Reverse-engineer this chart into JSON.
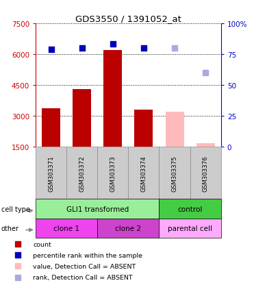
{
  "title": "GDS3550 / 1391052_at",
  "samples": [
    "GSM303371",
    "GSM303372",
    "GSM303373",
    "GSM303374",
    "GSM303375",
    "GSM303376"
  ],
  "counts": [
    3350,
    4300,
    6200,
    3300,
    null,
    null
  ],
  "counts_absent": [
    null,
    null,
    null,
    null,
    3200,
    1650
  ],
  "percentile_ranks": [
    79,
    80,
    83,
    80,
    null,
    null
  ],
  "percentile_ranks_absent": [
    null,
    null,
    null,
    null,
    80,
    60
  ],
  "ylim_left": [
    1500,
    7500
  ],
  "ylim_right": [
    0,
    100
  ],
  "yticks_left": [
    1500,
    3000,
    4500,
    6000,
    7500
  ],
  "yticks_right": [
    0,
    25,
    50,
    75,
    100
  ],
  "ytick_labels_right": [
    "0",
    "25",
    "50",
    "75",
    "100%"
  ],
  "left_axis_color": "#cc0000",
  "right_axis_color": "#0000cc",
  "bar_color_present": "#bb0000",
  "bar_color_absent": "#ffbbbb",
  "dot_color_present": "#0000bb",
  "dot_color_absent": "#aaaadd",
  "cell_type_groups": [
    {
      "label": "GLI1 transformed",
      "start": 0,
      "end": 4,
      "color": "#99ee99"
    },
    {
      "label": "control",
      "start": 4,
      "end": 6,
      "color": "#44cc44"
    }
  ],
  "other_groups": [
    {
      "label": "clone 1",
      "start": 0,
      "end": 2,
      "color": "#ee44ee"
    },
    {
      "label": "clone 2",
      "start": 2,
      "end": 4,
      "color": "#cc44cc"
    },
    {
      "label": "parental cell",
      "start": 4,
      "end": 6,
      "color": "#ffaaff"
    }
  ],
  "legend_items": [
    {
      "label": "count",
      "color": "#bb0000",
      "marker": "s"
    },
    {
      "label": "percentile rank within the sample",
      "color": "#0000bb",
      "marker": "s"
    },
    {
      "label": "value, Detection Call = ABSENT",
      "color": "#ffbbbb",
      "marker": "s"
    },
    {
      "label": "rank, Detection Call = ABSENT",
      "color": "#aaaadd",
      "marker": "s"
    }
  ],
  "bar_width": 0.6,
  "dot_size": 40,
  "label_box_color": "#cccccc",
  "label_box_edge": "#888888"
}
